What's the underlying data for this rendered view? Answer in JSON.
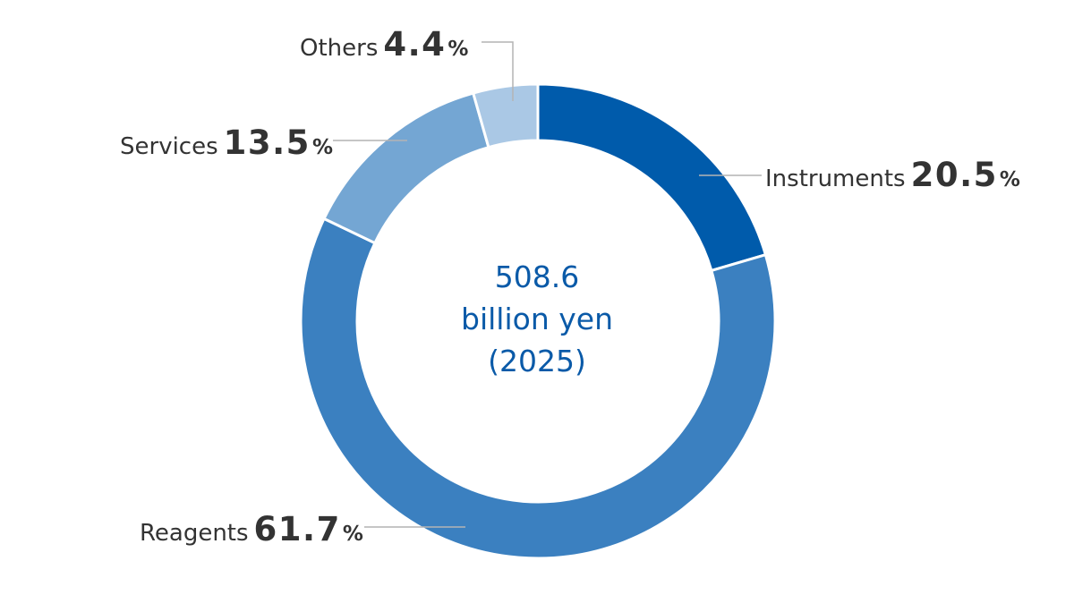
{
  "chart_data": {
    "type": "pie",
    "categories": [
      "Instruments",
      "Reagents",
      "Services",
      "Others"
    ],
    "values": [
      20.5,
      61.7,
      13.5,
      4.4
    ],
    "value_suffix": "%",
    "colors": [
      "#005bab",
      "#3b80c0",
      "#74a6d3",
      "#aac8e5"
    ],
    "center_text": {
      "line1": "508.6",
      "line2": "billion yen",
      "line3": "(2025)"
    },
    "labels": [
      {
        "name": "Instruments",
        "value": "20.5",
        "unit": "%"
      },
      {
        "name": "Reagents",
        "value": "61.7",
        "unit": "%"
      },
      {
        "name": "Services",
        "value": "13.5",
        "unit": "%"
      },
      {
        "name": "Others",
        "value": "4.4",
        "unit": "%"
      }
    ]
  }
}
